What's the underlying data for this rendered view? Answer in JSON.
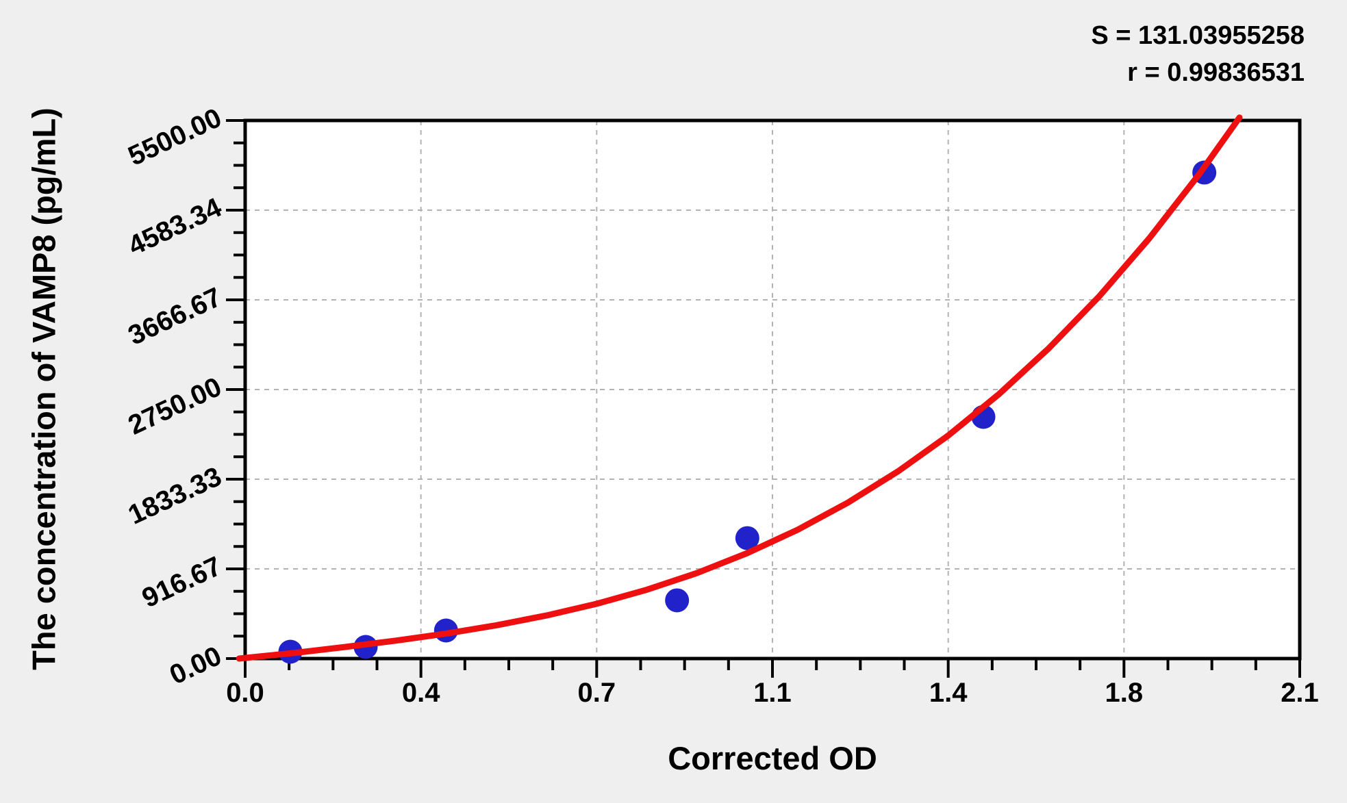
{
  "stats": {
    "s_label": "S = 131.03955258",
    "r_label": "r = 0.99836531"
  },
  "axes": {
    "y_title": "The concentration of VAMP8 (pg/mL)",
    "x_title": "Corrected OD"
  },
  "chart_data": {
    "type": "scatter",
    "title": "",
    "xlabel": "Corrected OD",
    "ylabel": "The concentration of VAMP8 (pg/mL)",
    "xlim": [
      0,
      2.1
    ],
    "ylim": [
      0,
      5500
    ],
    "grid": "dashed major gridlines",
    "legend_position": "none",
    "x_ticks": [
      {
        "v": 0.0,
        "label": "0.0"
      },
      {
        "v": 0.35,
        "label": "0.4"
      },
      {
        "v": 0.7,
        "label": "0.7"
      },
      {
        "v": 1.05,
        "label": "1.1"
      },
      {
        "v": 1.4,
        "label": "1.4"
      },
      {
        "v": 1.75,
        "label": "1.8"
      },
      {
        "v": 2.1,
        "label": "2.1"
      }
    ],
    "y_ticks": [
      {
        "v": 0,
        "label": "0.00"
      },
      {
        "v": 916.67,
        "label": "916.67"
      },
      {
        "v": 1833.33,
        "label": "1833.33"
      },
      {
        "v": 2750.0,
        "label": "2750.00"
      },
      {
        "v": 3666.67,
        "label": "3666.67"
      },
      {
        "v": 4583.34,
        "label": "4583.34"
      },
      {
        "v": 5500.0,
        "label": "5500.00"
      }
    ],
    "minor_tick_divisions": 4,
    "points": [
      {
        "od": 0.09,
        "conc": 70
      },
      {
        "od": 0.24,
        "conc": 119
      },
      {
        "od": 0.4,
        "conc": 287
      },
      {
        "od": 0.86,
        "conc": 595
      },
      {
        "od": 1.0,
        "conc": 1231
      },
      {
        "od": 1.47,
        "conc": 2470
      },
      {
        "od": 1.91,
        "conc": 4968
      }
    ],
    "curve": [
      [
        -0.012,
        0
      ],
      [
        0.1,
        59
      ],
      [
        0.2,
        119
      ],
      [
        0.3,
        183
      ],
      [
        0.4,
        255
      ],
      [
        0.5,
        340
      ],
      [
        0.6,
        440
      ],
      [
        0.7,
        560
      ],
      [
        0.8,
        704
      ],
      [
        0.9,
        875
      ],
      [
        1.0,
        1078
      ],
      [
        1.1,
        1316
      ],
      [
        1.2,
        1593
      ],
      [
        1.3,
        1913
      ],
      [
        1.4,
        2280
      ],
      [
        1.5,
        2698
      ],
      [
        1.6,
        3170
      ],
      [
        1.7,
        3699
      ],
      [
        1.8,
        4293
      ],
      [
        1.9,
        4952
      ],
      [
        1.98,
        5530
      ]
    ]
  },
  "colors": {
    "curve": "#ee1010",
    "marker": "#2222cb",
    "grid": "#b2b2b2",
    "axis": "#000000",
    "plot_bg": "#ffffff",
    "page_bg": "#efefef",
    "text": "#000000"
  }
}
